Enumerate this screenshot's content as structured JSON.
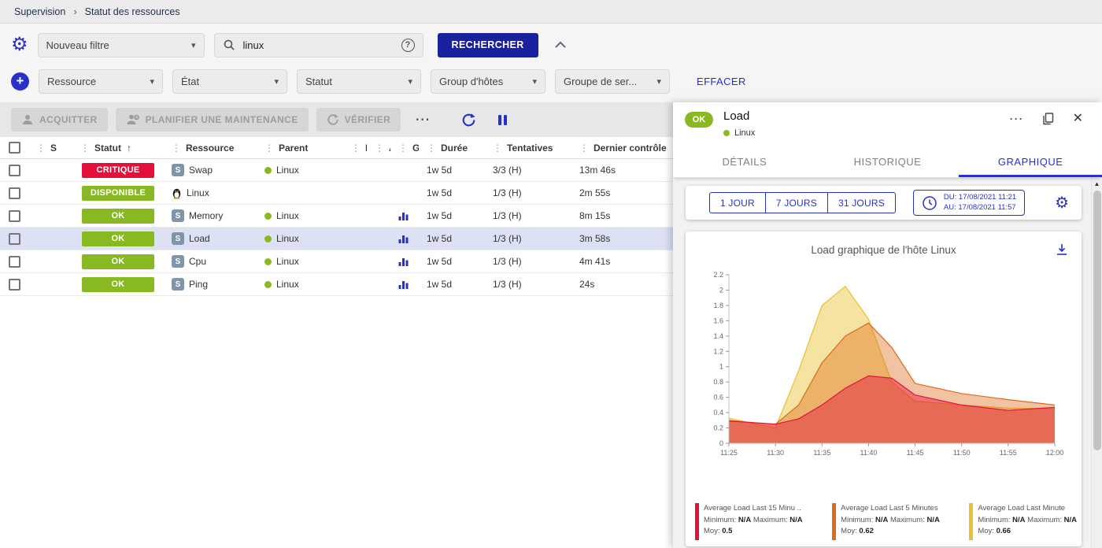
{
  "colors": {
    "accent": "#2731c8",
    "primary": "#1a219f",
    "ok": "#88b922",
    "critical": "#e4103c",
    "selected-row": "#dde1f4",
    "service-chip": "#8095aa"
  },
  "icons": {
    "gear": "⚙",
    "plus": "+",
    "help": "?",
    "more": "⋯",
    "close": "✕",
    "sort_asc": "↑",
    "drag": "⋮",
    "separator": "›",
    "caret": "▾",
    "scroll_up": "▲"
  },
  "breadcrumb": {
    "items": [
      "Supervision",
      "Statut des ressources"
    ]
  },
  "filters": {
    "saved_filter": "Nouveau filtre",
    "search_value": "linux",
    "search_button": "RECHERCHER",
    "clear_button": "EFFACER",
    "criteria": [
      "Ressource",
      "État",
      "Statut",
      "Group d'hôtes",
      "Groupe de ser..."
    ]
  },
  "toolbar": {
    "acknowledge": "ACQUITTER",
    "maintenance": "PLANIFIER UNE MAINTENANCE",
    "check": "VÉRIFIER"
  },
  "table": {
    "headers": [
      "S",
      "Statut",
      "Ressource",
      "Parent",
      "N",
      "A",
      "G",
      "Durée",
      "Tentatives",
      "Dernier contrôle"
    ],
    "sorted_by": "Statut",
    "rows": [
      {
        "status": "CRITIQUE",
        "status_color": "#e4103c",
        "kind": "service",
        "resource": "Swap",
        "parent": "Linux",
        "graph": false,
        "duration": "1w 5d",
        "tries": "3/3 (H)",
        "last_check": "13m 46s",
        "selected": false
      },
      {
        "status": "DISPONIBLE",
        "status_color": "#88b922",
        "kind": "host",
        "resource": "Linux",
        "parent": "",
        "graph": false,
        "duration": "1w 5d",
        "tries": "1/3 (H)",
        "last_check": "2m 55s",
        "selected": false
      },
      {
        "status": "OK",
        "status_color": "#88b922",
        "kind": "service",
        "resource": "Memory",
        "parent": "Linux",
        "graph": true,
        "duration": "1w 5d",
        "tries": "1/3 (H)",
        "last_check": "8m 15s",
        "selected": false
      },
      {
        "status": "OK",
        "status_color": "#88b922",
        "kind": "service",
        "resource": "Load",
        "parent": "Linux",
        "graph": true,
        "duration": "1w 5d",
        "tries": "1/3 (H)",
        "last_check": "3m 58s",
        "selected": true
      },
      {
        "status": "OK",
        "status_color": "#88b922",
        "kind": "service",
        "resource": "Cpu",
        "parent": "Linux",
        "graph": true,
        "duration": "1w 5d",
        "tries": "1/3 (H)",
        "last_check": "4m 41s",
        "selected": false
      },
      {
        "status": "OK",
        "status_color": "#88b922",
        "kind": "service",
        "resource": "Ping",
        "parent": "Linux",
        "graph": true,
        "duration": "1w 5d",
        "tries": "1/3 (H)",
        "last_check": "24s",
        "selected": false
      }
    ]
  },
  "panel": {
    "status": "OK",
    "title": "Load",
    "host": "Linux",
    "tabs": [
      {
        "label": "DÉTAILS",
        "active": false
      },
      {
        "label": "HISTORIQUE",
        "active": false
      },
      {
        "label": "GRAPHIQUE",
        "active": true
      }
    ],
    "time_ranges": [
      "1 JOUR",
      "7 JOURS",
      "31 JOURS"
    ],
    "date_from": "DU: 17/08/2021 11:21",
    "date_to": "AU: 17/08/2021 11:57"
  },
  "chart_data": {
    "type": "area",
    "title": "Load graphique de l'hôte Linux",
    "xlabel": "",
    "ylabel": "",
    "ylim": [
      0,
      2.2
    ],
    "y_tick_step": 0.2,
    "grid": false,
    "legend_position": "bottom",
    "x_ticks": [
      "11:25",
      "11:30",
      "11:35",
      "11:40",
      "11:45",
      "11:50",
      "11:55",
      "12:00"
    ],
    "x_minutes": [
      0,
      2.5,
      5,
      7.5,
      10,
      12.5,
      15,
      17.5,
      20,
      25,
      30,
      35
    ],
    "x_range_minutes": [
      0,
      35
    ],
    "series": [
      {
        "name": "Average Load Last Minute",
        "color": "#e8c22e",
        "fill_opacity": 0.45,
        "values": [
          0.33,
          0.26,
          0.2,
          0.95,
          1.8,
          2.05,
          1.62,
          0.8,
          0.55,
          0.5,
          0.46,
          0.45
        ]
      },
      {
        "name": "Average Load Last 5 Minutes",
        "color": "#df6a18",
        "fill_opacity": 0.4,
        "values": [
          0.3,
          0.27,
          0.25,
          0.5,
          1.05,
          1.4,
          1.57,
          1.25,
          0.78,
          0.65,
          0.57,
          0.5
        ]
      },
      {
        "name": "Average Load Last 15 Minu ..",
        "color": "#e3123c",
        "fill_opacity": 0.45,
        "values": [
          0.29,
          0.27,
          0.25,
          0.32,
          0.5,
          0.72,
          0.88,
          0.85,
          0.63,
          0.5,
          0.43,
          0.47
        ]
      }
    ],
    "legend": [
      {
        "name": "Average Load Last 15 Minu ..",
        "color": "#e3123c",
        "minimum": "N/A",
        "maximum": "N/A",
        "moy": "0.5"
      },
      {
        "name": "Average Load Last 5 Minutes",
        "color": "#df6a18",
        "minimum": "N/A",
        "maximum": "N/A",
        "moy": "0.62"
      },
      {
        "name": "Average Load Last Minute",
        "color": "#e8c22e",
        "minimum": "N/A",
        "maximum": "N/A",
        "moy": "0.66"
      }
    ],
    "legend_labels": {
      "minimum": "Minimum:",
      "maximum": "Maximum:",
      "moy": "Moy:"
    }
  }
}
